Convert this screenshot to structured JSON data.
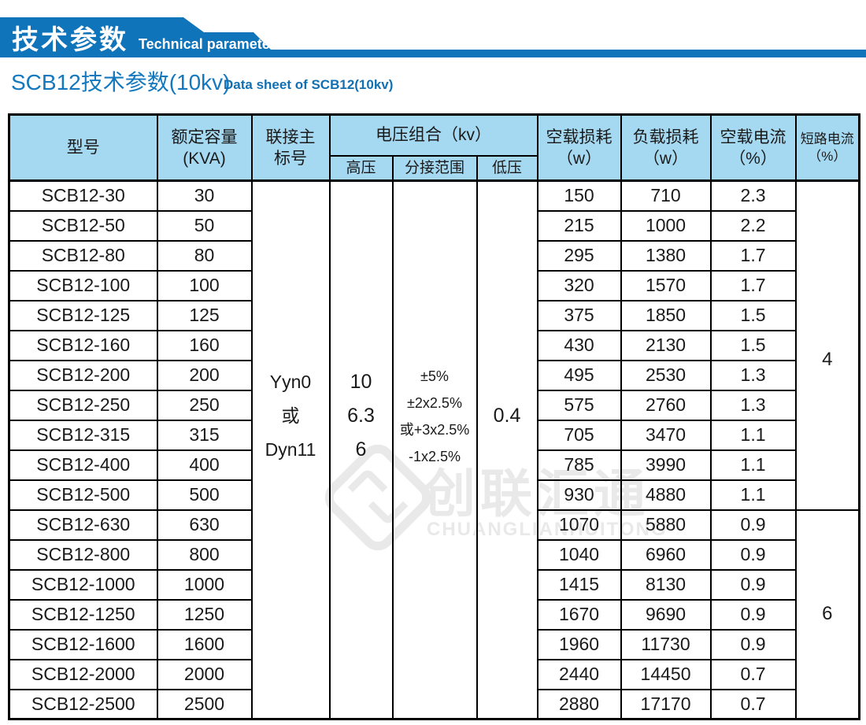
{
  "banner": {
    "title_cn": "技术参数",
    "title_en": "Technical parameter"
  },
  "page_title": {
    "cn": "SCB12技术参数(10kv)",
    "en": "Data sheet of SCB12(10kv)"
  },
  "watermark": {
    "cn": "创联汇通",
    "en": "CHUANGLIANHUITONG",
    "logo_icon": "diamond-brand-mark"
  },
  "colors": {
    "banner_blue": "#0f74ba",
    "header_blue": "#a5d8f1",
    "title_blue": "#1478be",
    "watermark_gray": "#e9e9e9"
  },
  "table": {
    "headers": {
      "model": "型号",
      "capacity_l1": "额定容量",
      "capacity_l2": "(KVA)",
      "connection_l1": "联接主",
      "connection_l2": "标号",
      "voltage_group": "电压组合（kv）",
      "hv": "高压",
      "tap": "分接范围",
      "lv": "低压",
      "noload_l1": "空载损耗",
      "noload_l2": "（w）",
      "load_l1": "负载损耗",
      "load_l2": "（w）",
      "current_l1": "空载电流",
      "current_l2": "（%）",
      "short_l1": "短路电流",
      "short_l2": "（%）"
    },
    "merged": {
      "connection_lines": [
        "Yyn0",
        "或",
        "Dyn11"
      ],
      "hv_lines": [
        "10",
        "6.3",
        "6"
      ],
      "tap_lines": [
        "±5%",
        "±2x2.5%",
        "或+3x2.5%",
        "-1x2.5%"
      ],
      "lv": "0.4",
      "short_group1": "4",
      "short_group1_rows": 11,
      "short_group2": "6",
      "short_group2_rows": 7
    },
    "rows": [
      {
        "model": "SCB12-30",
        "kva": "30",
        "noload": "150",
        "load": "710",
        "current": "2.3"
      },
      {
        "model": "SCB12-50",
        "kva": "50",
        "noload": "215",
        "load": "1000",
        "current": "2.2"
      },
      {
        "model": "SCB12-80",
        "kva": "80",
        "noload": "295",
        "load": "1380",
        "current": "1.7"
      },
      {
        "model": "SCB12-100",
        "kva": "100",
        "noload": "320",
        "load": "1570",
        "current": "1.7"
      },
      {
        "model": "SCB12-125",
        "kva": "125",
        "noload": "375",
        "load": "1850",
        "current": "1.5"
      },
      {
        "model": "SCB12-160",
        "kva": "160",
        "noload": "430",
        "load": "2130",
        "current": "1.5"
      },
      {
        "model": "SCB12-200",
        "kva": "200",
        "noload": "495",
        "load": "2530",
        "current": "1.3"
      },
      {
        "model": "SCB12-250",
        "kva": "250",
        "noload": "575",
        "load": "2760",
        "current": "1.3"
      },
      {
        "model": "SCB12-315",
        "kva": "315",
        "noload": "705",
        "load": "3470",
        "current": "1.1"
      },
      {
        "model": "SCB12-400",
        "kva": "400",
        "noload": "785",
        "load": "3990",
        "current": "1.1"
      },
      {
        "model": "SCB12-500",
        "kva": "500",
        "noload": "930",
        "load": "4880",
        "current": "1.1"
      },
      {
        "model": "SCB12-630",
        "kva": "630",
        "noload": "1070",
        "load": "5880",
        "current": "0.9"
      },
      {
        "model": "SCB12-800",
        "kva": "800",
        "noload": "1040",
        "load": "6960",
        "current": "0.9"
      },
      {
        "model": "SCB12-1000",
        "kva": "1000",
        "noload": "1415",
        "load": "8130",
        "current": "0.9"
      },
      {
        "model": "SCB12-1250",
        "kva": "1250",
        "noload": "1670",
        "load": "9690",
        "current": "0.9"
      },
      {
        "model": "SCB12-1600",
        "kva": "1600",
        "noload": "1960",
        "load": "11730",
        "current": "0.9"
      },
      {
        "model": "SCB12-2000",
        "kva": "2000",
        "noload": "2440",
        "load": "14450",
        "current": "0.7"
      },
      {
        "model": "SCB12-2500",
        "kva": "2500",
        "noload": "2880",
        "load": "17170",
        "current": "0.7"
      }
    ]
  }
}
